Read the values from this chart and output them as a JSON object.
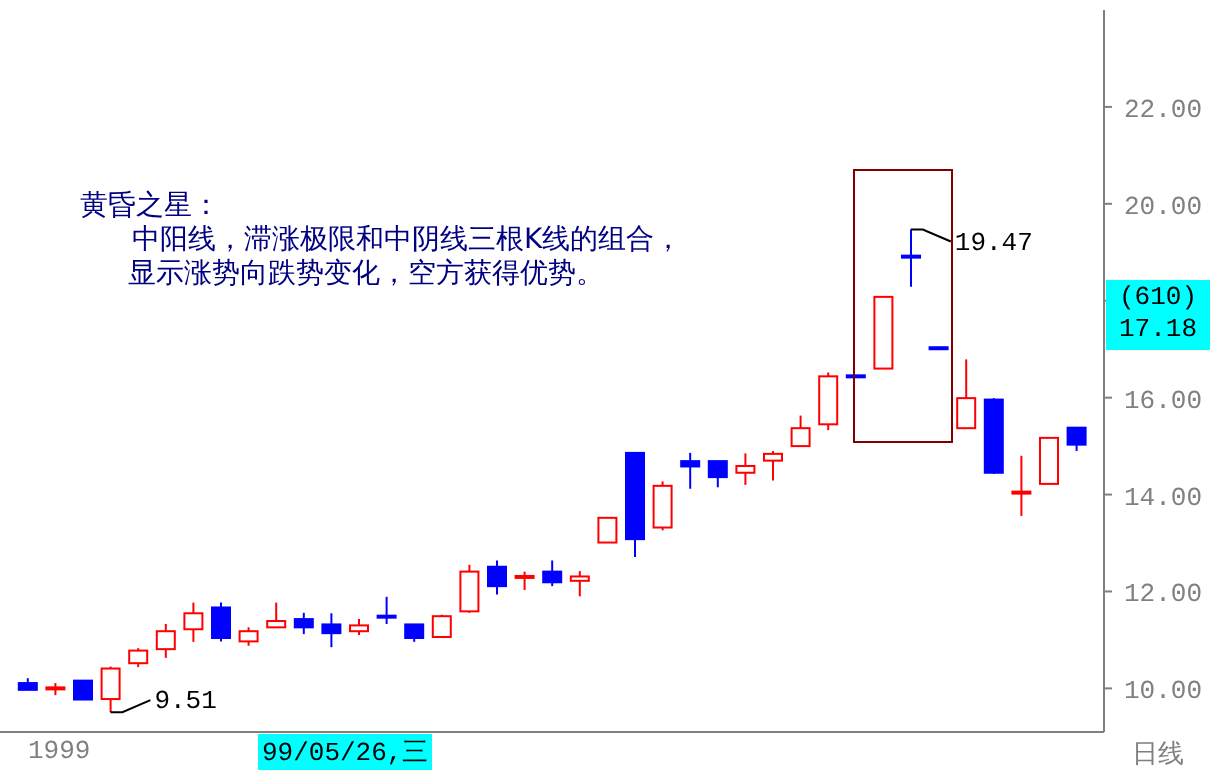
{
  "chart_data": {
    "type": "candlestick",
    "categories": [
      null,
      null,
      null,
      null,
      null,
      null,
      null,
      null,
      null,
      null,
      null,
      null,
      null,
      null,
      null,
      null,
      null,
      null,
      null,
      null,
      null,
      null,
      null,
      null,
      null,
      null,
      null,
      null,
      null,
      null,
      null,
      null,
      null,
      null,
      null,
      null,
      null,
      null,
      null
    ],
    "ohlc": [
      [
        10.11,
        10.21,
        9.97,
        9.97
      ],
      [
        9.98,
        10.11,
        9.86,
        10.0
      ],
      [
        10.16,
        10.16,
        9.77,
        9.77
      ],
      [
        9.78,
        10.45,
        9.51,
        10.41
      ],
      [
        10.52,
        10.83,
        10.44,
        10.78
      ],
      [
        10.81,
        11.33,
        10.63,
        11.18
      ],
      [
        11.22,
        11.77,
        10.96,
        11.55
      ],
      [
        11.67,
        11.77,
        10.97,
        11.04
      ],
      [
        10.97,
        11.26,
        10.88,
        11.18
      ],
      [
        11.26,
        11.77,
        11.26,
        11.39
      ],
      [
        11.43,
        11.56,
        11.12,
        11.26
      ],
      [
        11.32,
        11.55,
        10.85,
        11.14
      ],
      [
        11.18,
        11.43,
        11.1,
        11.3
      ],
      [
        11.48,
        11.89,
        11.33,
        11.43
      ],
      [
        11.32,
        11.32,
        10.96,
        11.04
      ],
      [
        11.06,
        11.52,
        11.06,
        11.49
      ],
      [
        11.59,
        12.55,
        11.56,
        12.41
      ],
      [
        12.51,
        12.64,
        11.94,
        12.11
      ],
      [
        12.28,
        12.41,
        12.03,
        12.3
      ],
      [
        12.41,
        12.64,
        12.11,
        12.19
      ],
      [
        12.22,
        12.42,
        11.9,
        12.31
      ],
      [
        13.01,
        13.52,
        13.01,
        13.52
      ],
      [
        14.86,
        14.86,
        12.71,
        13.08
      ],
      [
        13.32,
        14.27,
        13.26,
        14.18
      ],
      [
        14.69,
        14.86,
        14.12,
        14.58
      ],
      [
        14.69,
        14.69,
        14.15,
        14.36
      ],
      [
        14.45,
        14.85,
        14.2,
        14.59
      ],
      [
        14.7,
        14.9,
        14.29,
        14.84
      ],
      [
        15.0,
        15.63,
        15.0,
        15.37
      ],
      [
        15.45,
        16.52,
        15.33,
        16.44
      ],
      [
        16.44,
        16.45,
        16.43,
        16.44
      ],
      [
        16.6,
        18.08,
        16.6,
        18.08
      ],
      [
        18.91,
        19.47,
        18.29,
        18.91
      ],
      [
        17.02,
        17.03,
        17.01,
        17.02
      ],
      [
        15.37,
        16.79,
        15.37,
        15.99
      ],
      [
        15.96,
        15.99,
        14.43,
        14.45
      ],
      [
        14.04,
        14.8,
        13.56,
        14.04
      ],
      [
        14.22,
        15.17,
        14.22,
        15.17
      ],
      [
        15.38,
        15.38,
        14.9,
        15.03
      ]
    ],
    "colors": [
      "#0000ff",
      "#ff0000",
      "#0000ff",
      "#ff0000",
      "#ff0000",
      "#ff0000",
      "#ff0000",
      "#0000ff",
      "#ff0000",
      "#ff0000",
      "#0000ff",
      "#0000ff",
      "#ff0000",
      "#0000ff",
      "#0000ff",
      "#ff0000",
      "#ff0000",
      "#0000ff",
      "#ff0000",
      "#0000ff",
      "#ff0000",
      "#ff0000",
      "#0000ff",
      "#ff0000",
      "#0000ff",
      "#0000ff",
      "#ff0000",
      "#ff0000",
      "#ff0000",
      "#ff0000",
      "#0000ff",
      "#ff0000",
      "#0000ff",
      "#0000ff",
      "#ff0000",
      "#0000ff",
      "#ff0000",
      "#ff0000",
      "#0000ff"
    ],
    "ylim": [
      9.1,
      24.0
    ],
    "yticks": [
      {
        "value": 10,
        "label": "10.00"
      },
      {
        "value": 12,
        "label": "12.00"
      },
      {
        "value": 14,
        "label": "14.00"
      },
      {
        "value": 16,
        "label": "16.00"
      },
      {
        "value": 18,
        "label": null
      },
      {
        "value": 20,
        "label": "20.00"
      },
      {
        "value": 22,
        "label": "22.00"
      }
    ],
    "tick_labels": "y",
    "annotations": [
      "黄昏之星：",
      "中阳线，滞涨极限和中阴线三根K线的组合，",
      "显示涨势向跌势变化，空方获得优势。",
      "9.51",
      "19.47",
      "(610)",
      "17.18",
      "1999",
      "99/05/26,三",
      "日线"
    ]
  }
}
